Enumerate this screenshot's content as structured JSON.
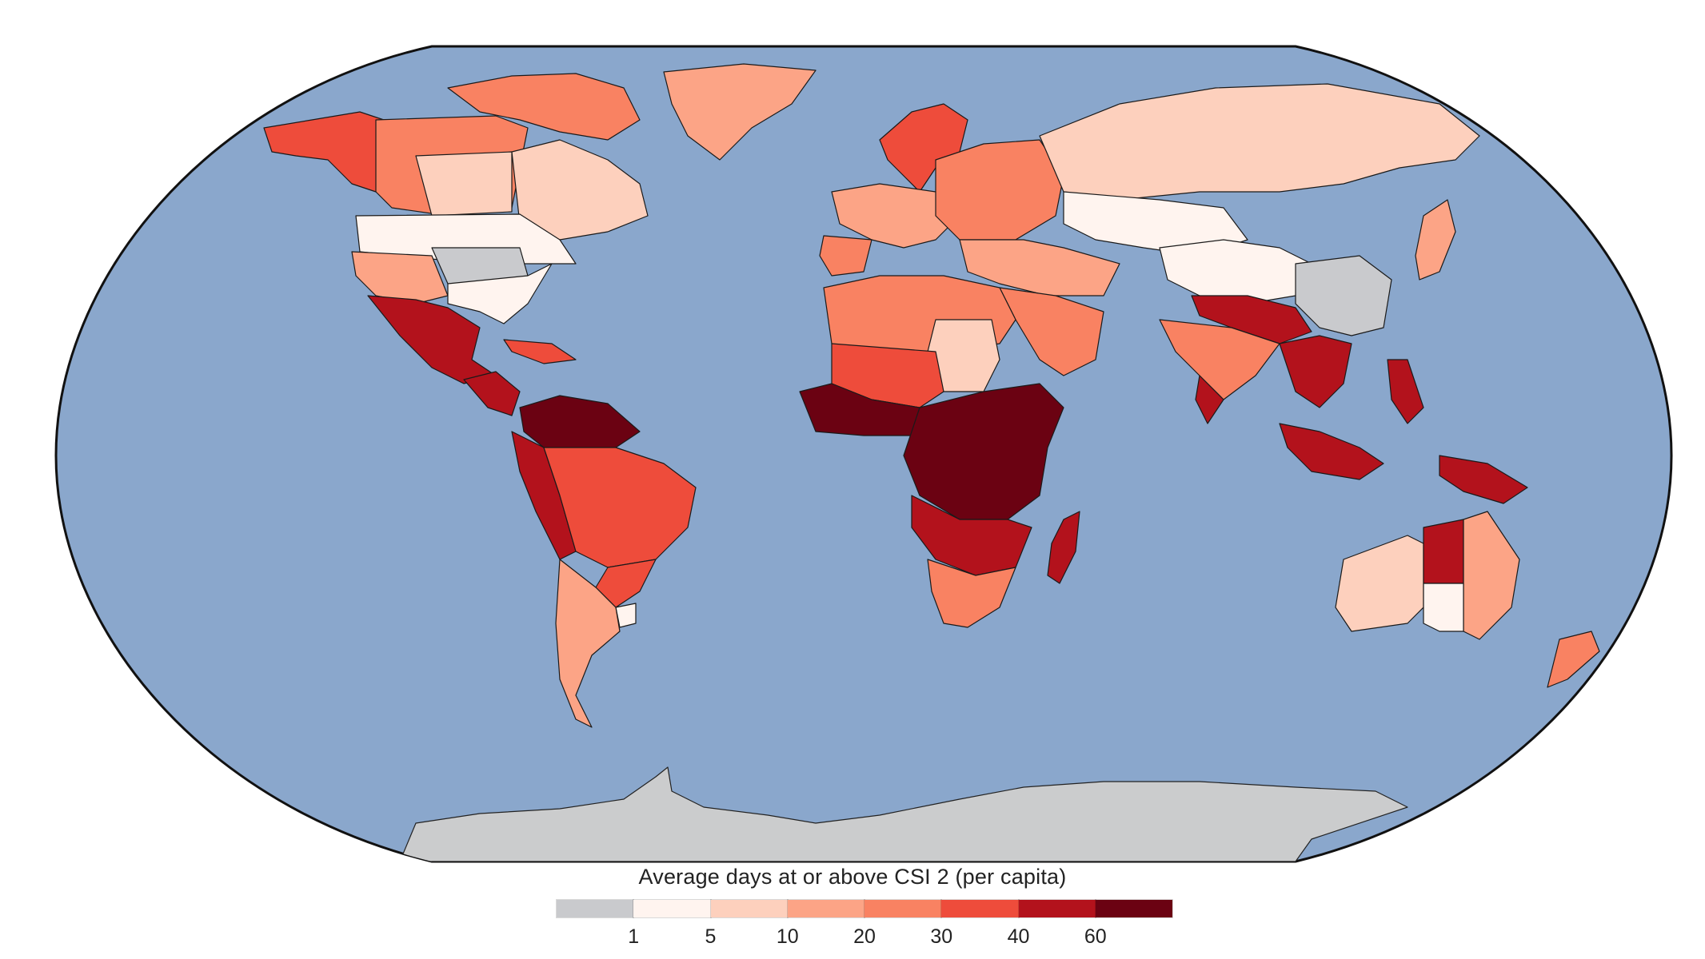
{
  "map": {
    "ocean_color": "#8aa7cc",
    "antarctica_color": "#cbcccd",
    "border_color": "#1a1a1a"
  },
  "legend": {
    "title": "Average days at or above CSI 2 (per capita)",
    "tick_labels": [
      "1",
      "5",
      "10",
      "20",
      "30",
      "40",
      "60"
    ],
    "bins": [
      {
        "label": "< 1",
        "color": "#c9cacd"
      },
      {
        "label": "1–5",
        "color": "#fff4ef"
      },
      {
        "label": "5–10",
        "color": "#fdd0bd"
      },
      {
        "label": "10–20",
        "color": "#fca486"
      },
      {
        "label": "20–30",
        "color": "#f98262"
      },
      {
        "label": "30–40",
        "color": "#ee4c3b"
      },
      {
        "label": "40–60",
        "color": "#b3121c"
      },
      {
        "label": "> 60",
        "color": "#6b0212"
      }
    ]
  },
  "regions": [
    {
      "name": "Alaska",
      "bin": 5
    },
    {
      "name": "Canada (west)",
      "bin": 4
    },
    {
      "name": "Canada (prairies)",
      "bin": 2
    },
    {
      "name": "Canada (east)",
      "bin": 2
    },
    {
      "name": "Arctic islands",
      "bin": 4
    },
    {
      "name": "Greenland",
      "bin": 3
    },
    {
      "name": "United States (north)",
      "bin": 1
    },
    {
      "name": "United States (southwest)",
      "bin": 3
    },
    {
      "name": "United States (southeast)",
      "bin": 1
    },
    {
      "name": "United States (midwest)",
      "bin": 0
    },
    {
      "name": "Mexico",
      "bin": 6
    },
    {
      "name": "Central America",
      "bin": 6
    },
    {
      "name": "Caribbean",
      "bin": 5
    },
    {
      "name": "Amazon",
      "bin": 7
    },
    {
      "name": "Brazil (central)",
      "bin": 5
    },
    {
      "name": "Brazil (south)",
      "bin": 5
    },
    {
      "name": "Andes",
      "bin": 6
    },
    {
      "name": "Argentina",
      "bin": 3
    },
    {
      "name": "Uruguay",
      "bin": 1
    },
    {
      "name": "Scandinavia",
      "bin": 5
    },
    {
      "name": "Western Europe",
      "bin": 3
    },
    {
      "name": "Eastern Europe",
      "bin": 4
    },
    {
      "name": "Iberia",
      "bin": 4
    },
    {
      "name": "Russia",
      "bin": 2
    },
    {
      "name": "Central Asia",
      "bin": 1
    },
    {
      "name": "Middle East",
      "bin": 3
    },
    {
      "name": "Arabian Peninsula",
      "bin": 4
    },
    {
      "name": "North Africa",
      "bin": 4
    },
    {
      "name": "Sahara (central)",
      "bin": 2
    },
    {
      "name": "West Africa",
      "bin": 7
    },
    {
      "name": "Sahel",
      "bin": 5
    },
    {
      "name": "Central & East Africa",
      "bin": 7
    },
    {
      "name": "Southern Africa (north)",
      "bin": 6
    },
    {
      "name": "Southern Africa (south)",
      "bin": 4
    },
    {
      "name": "Madagascar",
      "bin": 6
    },
    {
      "name": "India",
      "bin": 4
    },
    {
      "name": "India (south)",
      "bin": 6
    },
    {
      "name": "Himalaya",
      "bin": 6
    },
    {
      "name": "China (west)",
      "bin": 1
    },
    {
      "name": "China (east)",
      "bin": 0
    },
    {
      "name": "Southeast Asia",
      "bin": 6
    },
    {
      "name": "Indonesia",
      "bin": 6
    },
    {
      "name": "Papua New Guinea",
      "bin": 6
    },
    {
      "name": "Philippines",
      "bin": 6
    },
    {
      "name": "Japan",
      "bin": 3
    },
    {
      "name": "Australia (west)",
      "bin": 2
    },
    {
      "name": "Australia (north)",
      "bin": 6
    },
    {
      "name": "Australia (east)",
      "bin": 3
    },
    {
      "name": "Australia (south)",
      "bin": 1
    },
    {
      "name": "New Zealand",
      "bin": 4
    }
  ]
}
